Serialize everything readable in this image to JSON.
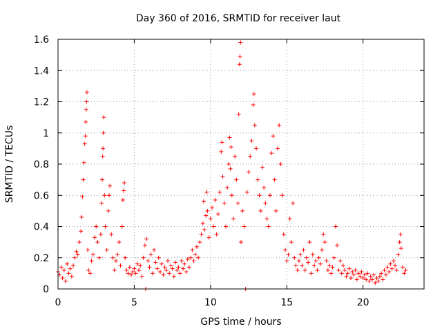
{
  "chart_data": {
    "type": "scatter",
    "title": "Day 360 of 2016, SRMTID for receiver laut",
    "xlabel": "GPS time / hours",
    "ylabel": "SRMTID / TECUs",
    "xlim": [
      0,
      24
    ],
    "ylim": [
      0,
      1.6
    ],
    "xticks": [
      0,
      5,
      10,
      15,
      20
    ],
    "yticks": [
      0,
      0.2,
      0.4,
      0.6,
      0.8,
      1.0,
      1.2,
      1.4,
      1.6
    ],
    "ytick_labels": [
      "0",
      "0.2",
      "0.4",
      "0.6",
      "0.8",
      "1",
      "1.2",
      "1.4",
      "1.6"
    ],
    "grid": true,
    "marker": "+",
    "color": "#ff0000",
    "series": [
      {
        "name": "SRMTID",
        "points": [
          [
            0.0,
            0.11
          ],
          [
            0.1,
            0.09
          ],
          [
            0.2,
            0.14
          ],
          [
            0.3,
            0.07
          ],
          [
            0.4,
            0.12
          ],
          [
            0.5,
            0.05
          ],
          [
            0.6,
            0.16
          ],
          [
            0.7,
            0.1
          ],
          [
            0.8,
            0.13
          ],
          [
            0.9,
            0.08
          ],
          [
            1.0,
            0.15
          ],
          [
            1.1,
            0.2
          ],
          [
            1.2,
            0.24
          ],
          [
            1.3,
            0.22
          ],
          [
            1.4,
            0.3
          ],
          [
            1.5,
            0.37
          ],
          [
            1.55,
            0.46
          ],
          [
            1.6,
            0.59
          ],
          [
            1.65,
            0.7
          ],
          [
            1.7,
            0.81
          ],
          [
            1.75,
            0.93
          ],
          [
            1.8,
            0.98
          ],
          [
            1.82,
            1.07
          ],
          [
            1.85,
            1.15
          ],
          [
            1.87,
            1.2
          ],
          [
            1.9,
            1.26
          ],
          [
            1.95,
            0.25
          ],
          [
            2.0,
            0.12
          ],
          [
            2.1,
            0.1
          ],
          [
            2.2,
            0.18
          ],
          [
            2.3,
            0.22
          ],
          [
            2.4,
            0.33
          ],
          [
            2.5,
            0.4
          ],
          [
            2.6,
            0.3
          ],
          [
            2.7,
            0.2
          ],
          [
            2.8,
            0.35
          ],
          [
            2.85,
            0.55
          ],
          [
            2.9,
            0.7
          ],
          [
            2.93,
            0.85
          ],
          [
            2.95,
            0.9
          ],
          [
            2.97,
            1.0
          ],
          [
            3.0,
            1.1
          ],
          [
            3.05,
            0.6
          ],
          [
            3.1,
            0.4
          ],
          [
            3.2,
            0.25
          ],
          [
            3.3,
            0.5
          ],
          [
            3.35,
            0.6
          ],
          [
            3.4,
            0.66
          ],
          [
            3.5,
            0.35
          ],
          [
            3.6,
            0.2
          ],
          [
            3.7,
            0.12
          ],
          [
            3.8,
            0.18
          ],
          [
            3.9,
            0.22
          ],
          [
            4.0,
            0.3
          ],
          [
            4.1,
            0.15
          ],
          [
            4.2,
            0.4
          ],
          [
            4.25,
            0.57
          ],
          [
            4.3,
            0.63
          ],
          [
            4.35,
            0.68
          ],
          [
            4.4,
            0.2
          ],
          [
            4.5,
            0.12
          ],
          [
            4.6,
            0.1
          ],
          [
            4.7,
            0.14
          ],
          [
            4.8,
            0.09
          ],
          [
            4.9,
            0.11
          ],
          [
            5.0,
            0.13
          ],
          [
            5.1,
            0.1
          ],
          [
            5.2,
            0.16
          ],
          [
            5.3,
            0.12
          ],
          [
            5.4,
            0.15
          ],
          [
            5.5,
            0.08
          ],
          [
            5.6,
            0.2
          ],
          [
            5.7,
            0.28
          ],
          [
            5.75,
            0.0
          ],
          [
            5.8,
            0.32
          ],
          [
            5.9,
            0.18
          ],
          [
            6.0,
            0.14
          ],
          [
            6.1,
            0.22
          ],
          [
            6.2,
            0.1
          ],
          [
            6.3,
            0.25
          ],
          [
            6.4,
            0.17
          ],
          [
            6.5,
            0.13
          ],
          [
            6.6,
            0.2
          ],
          [
            6.7,
            0.11
          ],
          [
            6.8,
            0.16
          ],
          [
            6.9,
            0.09
          ],
          [
            7.0,
            0.14
          ],
          [
            7.1,
            0.12
          ],
          [
            7.2,
            0.18
          ],
          [
            7.3,
            0.1
          ],
          [
            7.4,
            0.15
          ],
          [
            7.5,
            0.13
          ],
          [
            7.6,
            0.08
          ],
          [
            7.7,
            0.17
          ],
          [
            7.8,
            0.12
          ],
          [
            7.9,
            0.14
          ],
          [
            8.0,
            0.1
          ],
          [
            8.1,
            0.18
          ],
          [
            8.2,
            0.13
          ],
          [
            8.3,
            0.16
          ],
          [
            8.4,
            0.11
          ],
          [
            8.5,
            0.19
          ],
          [
            8.6,
            0.14
          ],
          [
            8.7,
            0.2
          ],
          [
            8.8,
            0.25
          ],
          [
            8.9,
            0.18
          ],
          [
            9.0,
            0.22
          ],
          [
            9.1,
            0.27
          ],
          [
            9.2,
            0.2
          ],
          [
            9.3,
            0.3
          ],
          [
            9.4,
            0.35
          ],
          [
            9.5,
            0.42
          ],
          [
            9.55,
            0.56
          ],
          [
            9.6,
            0.38
          ],
          [
            9.7,
            0.47
          ],
          [
            9.75,
            0.62
          ],
          [
            9.8,
            0.5
          ],
          [
            9.9,
            0.33
          ],
          [
            10.0,
            0.45
          ],
          [
            10.1,
            0.52
          ],
          [
            10.2,
            0.4
          ],
          [
            10.3,
            0.57
          ],
          [
            10.4,
            0.35
          ],
          [
            10.5,
            0.48
          ],
          [
            10.6,
            0.62
          ],
          [
            10.7,
            0.88
          ],
          [
            10.75,
            0.94
          ],
          [
            10.8,
            0.72
          ],
          [
            10.9,
            0.55
          ],
          [
            11.0,
            0.4
          ],
          [
            11.1,
            0.65
          ],
          [
            11.2,
            0.8
          ],
          [
            11.25,
            0.97
          ],
          [
            11.3,
            0.77
          ],
          [
            11.35,
            0.91
          ],
          [
            11.4,
            0.6
          ],
          [
            11.5,
            0.45
          ],
          [
            11.6,
            0.85
          ],
          [
            11.7,
            0.7
          ],
          [
            11.8,
            0.55
          ],
          [
            11.85,
            1.12
          ],
          [
            11.9,
            1.44
          ],
          [
            11.93,
            1.49
          ],
          [
            11.97,
            1.58
          ],
          [
            12.0,
            0.3
          ],
          [
            12.1,
            0.5
          ],
          [
            12.2,
            0.4
          ],
          [
            12.3,
            0.0
          ],
          [
            12.4,
            0.62
          ],
          [
            12.5,
            0.75
          ],
          [
            12.6,
            0.85
          ],
          [
            12.7,
            0.95
          ],
          [
            12.8,
            1.18
          ],
          [
            12.85,
            1.25
          ],
          [
            12.9,
            1.05
          ],
          [
            13.0,
            0.9
          ],
          [
            13.1,
            0.7
          ],
          [
            13.2,
            0.6
          ],
          [
            13.3,
            0.5
          ],
          [
            13.4,
            0.78
          ],
          [
            13.5,
            0.65
          ],
          [
            13.6,
            0.55
          ],
          [
            13.7,
            0.45
          ],
          [
            13.8,
            0.4
          ],
          [
            13.9,
            0.6
          ],
          [
            14.0,
            0.87
          ],
          [
            14.1,
            0.98
          ],
          [
            14.2,
            0.7
          ],
          [
            14.3,
            0.5
          ],
          [
            14.4,
            0.9
          ],
          [
            14.5,
            1.05
          ],
          [
            14.6,
            0.8
          ],
          [
            14.7,
            0.6
          ],
          [
            14.8,
            0.35
          ],
          [
            14.9,
            0.25
          ],
          [
            15.0,
            0.18
          ],
          [
            15.1,
            0.22
          ],
          [
            15.2,
            0.45
          ],
          [
            15.3,
            0.3
          ],
          [
            15.4,
            0.55
          ],
          [
            15.5,
            0.2
          ],
          [
            15.6,
            0.15
          ],
          [
            15.7,
            0.12
          ],
          [
            15.8,
            0.18
          ],
          [
            15.9,
            0.22
          ],
          [
            16.0,
            0.15
          ],
          [
            16.1,
            0.25
          ],
          [
            16.2,
            0.12
          ],
          [
            16.3,
            0.2
          ],
          [
            16.4,
            0.17
          ],
          [
            16.5,
            0.3
          ],
          [
            16.6,
            0.1
          ],
          [
            16.7,
            0.22
          ],
          [
            16.8,
            0.15
          ],
          [
            16.9,
            0.18
          ],
          [
            17.0,
            0.12
          ],
          [
            17.1,
            0.2
          ],
          [
            17.2,
            0.16
          ],
          [
            17.3,
            0.25
          ],
          [
            17.4,
            0.35
          ],
          [
            17.5,
            0.3
          ],
          [
            17.6,
            0.18
          ],
          [
            17.7,
            0.12
          ],
          [
            17.8,
            0.15
          ],
          [
            17.9,
            0.1
          ],
          [
            18.0,
            0.14
          ],
          [
            18.1,
            0.2
          ],
          [
            18.2,
            0.4
          ],
          [
            18.3,
            0.28
          ],
          [
            18.4,
            0.12
          ],
          [
            18.5,
            0.18
          ],
          [
            18.6,
            0.1
          ],
          [
            18.7,
            0.15
          ],
          [
            18.8,
            0.12
          ],
          [
            18.9,
            0.08
          ],
          [
            19.0,
            0.1
          ],
          [
            19.1,
            0.13
          ],
          [
            19.2,
            0.07
          ],
          [
            19.3,
            0.11
          ],
          [
            19.4,
            0.09
          ],
          [
            19.5,
            0.12
          ],
          [
            19.6,
            0.06
          ],
          [
            19.7,
            0.1
          ],
          [
            19.8,
            0.08
          ],
          [
            19.9,
            0.11
          ],
          [
            20.0,
            0.07
          ],
          [
            20.1,
            0.09
          ],
          [
            20.2,
            0.06
          ],
          [
            20.3,
            0.1
          ],
          [
            20.4,
            0.05
          ],
          [
            20.5,
            0.08
          ],
          [
            20.6,
            0.06
          ],
          [
            20.7,
            0.09
          ],
          [
            20.8,
            0.04
          ],
          [
            20.9,
            0.07
          ],
          [
            21.0,
            0.05
          ],
          [
            21.1,
            0.08
          ],
          [
            21.2,
            0.1
          ],
          [
            21.3,
            0.06
          ],
          [
            21.4,
            0.12
          ],
          [
            21.5,
            0.09
          ],
          [
            21.6,
            0.14
          ],
          [
            21.7,
            0.11
          ],
          [
            21.8,
            0.16
          ],
          [
            21.9,
            0.13
          ],
          [
            22.0,
            0.18
          ],
          [
            22.1,
            0.15
          ],
          [
            22.2,
            0.12
          ],
          [
            22.3,
            0.22
          ],
          [
            22.4,
            0.3
          ],
          [
            22.45,
            0.35
          ],
          [
            22.5,
            0.26
          ],
          [
            22.6,
            0.14
          ],
          [
            22.7,
            0.1
          ],
          [
            22.8,
            0.12
          ]
        ]
      }
    ]
  }
}
